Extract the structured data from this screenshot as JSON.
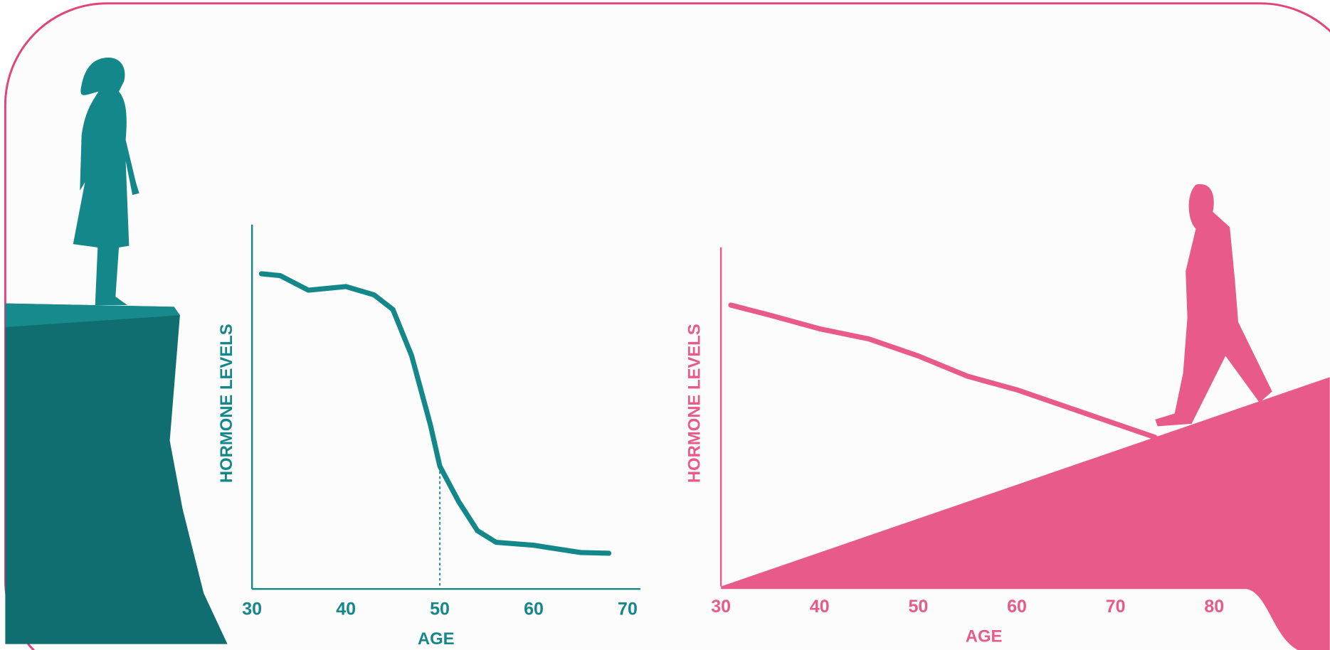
{
  "chart_data": [
    {
      "type": "line",
      "color": "#14878a",
      "ylabel": "HORMONE LEVELS",
      "xlabel": "AGE",
      "x": [
        31,
        33,
        36,
        40,
        43,
        45,
        47,
        49,
        50,
        52,
        54,
        56,
        60,
        65,
        68
      ],
      "values": [
        86.5,
        86,
        82,
        83,
        80.7,
        76.7,
        64,
        45,
        33.7,
        24,
        16,
        12.8,
        12,
        10,
        9.8
      ],
      "reference_x": 50,
      "xlim": [
        30,
        71
      ],
      "xticks": [
        30,
        40,
        50,
        60,
        70
      ],
      "ylim": [
        0,
        100
      ]
    },
    {
      "type": "line",
      "color": "#e85a8a",
      "ylabel": "HORMONE LEVELS",
      "xlabel": "AGE",
      "x": [
        31,
        35,
        40,
        45,
        50,
        55,
        60,
        65,
        70,
        74
      ],
      "values": [
        83,
        80,
        76,
        73,
        68,
        62,
        58,
        53,
        48,
        44
      ],
      "xlim": [
        30,
        90
      ],
      "xticks": [
        30,
        40,
        50,
        60,
        70,
        80
      ],
      "ylim": [
        0,
        100
      ]
    }
  ]
}
